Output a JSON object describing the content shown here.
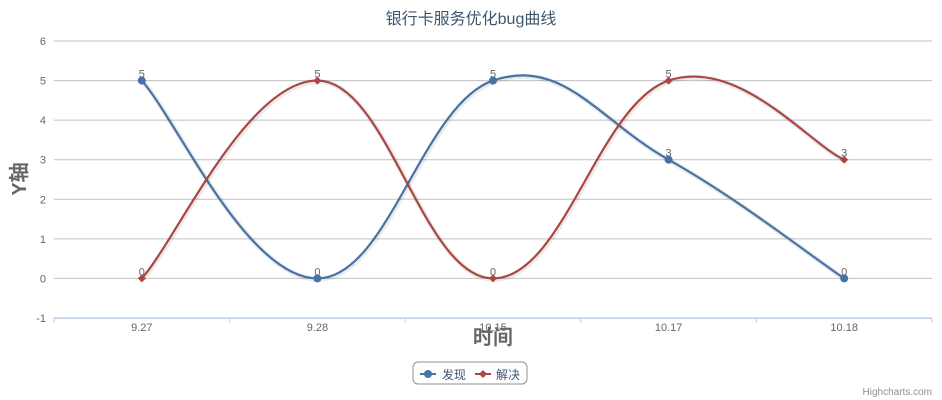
{
  "colors": {
    "series1": "#4572A7",
    "series2": "#AA4643",
    "grid": "#C0C0C0",
    "axis": "#C0D0E0",
    "title": "#3E576F",
    "tick": "#666666"
  },
  "chart_data": {
    "type": "line",
    "smooth": true,
    "title": "银行卡服务优化bug曲线",
    "xlabel": "时间",
    "ylabel": "Y轴",
    "categories": [
      "9.27",
      "9.28",
      "10.15",
      "10.17",
      "10.18"
    ],
    "ylim": [
      -1,
      6
    ],
    "yticks": [
      -1,
      0,
      1,
      2,
      3,
      4,
      5,
      6
    ],
    "grid": true,
    "legend_position": "bottom-center",
    "credits": "Highcharts.com",
    "series": [
      {
        "name": "发现",
        "values": [
          5,
          0,
          5,
          3,
          0
        ],
        "color": "#4572A7",
        "marker": "circle"
      },
      {
        "name": "解决",
        "values": [
          0,
          5,
          0,
          5,
          3
        ],
        "color": "#AA4643",
        "marker": "diamond"
      }
    ]
  }
}
